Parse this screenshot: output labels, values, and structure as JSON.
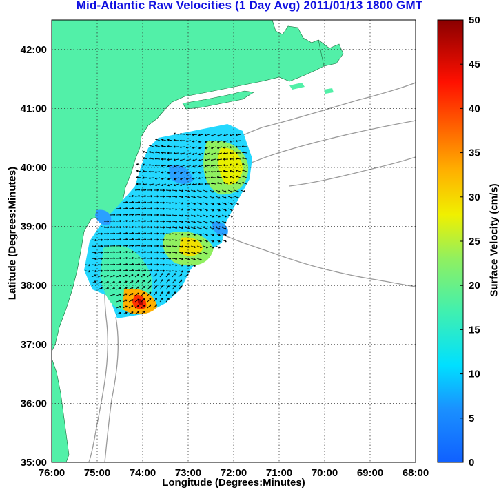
{
  "title": "Mid-Atlantic Raw Velocities (1 Day Avg) 2011/01/13 1800 GMT",
  "axes": {
    "xlabel": "Longitude (Degrees:Minutes)",
    "ylabel": "Latitude (Degrees:Minutes)",
    "xticks": [
      "76:00",
      "75:00",
      "74:00",
      "73:00",
      "72:00",
      "71:00",
      "70:00",
      "69:00",
      "68:00"
    ],
    "yticks": [
      "35:00",
      "36:00",
      "37:00",
      "38:00",
      "39:00",
      "40:00",
      "41:00",
      "42:00"
    ],
    "grid": "dotted"
  },
  "colorbar": {
    "label": "Surface Velocity (cm/s)",
    "ticks": [
      "0",
      "5",
      "10",
      "15",
      "20",
      "25",
      "30",
      "35",
      "40",
      "45",
      "50"
    ],
    "range": [
      0,
      50
    ]
  },
  "colors": {
    "land": "#52f0a8",
    "title": "#1010e0",
    "bathymetry": "#9a9a9a",
    "arrows": "#000000"
  },
  "map_extent": {
    "lon": [
      -76,
      -68
    ],
    "lat": [
      35,
      42.5
    ]
  }
}
